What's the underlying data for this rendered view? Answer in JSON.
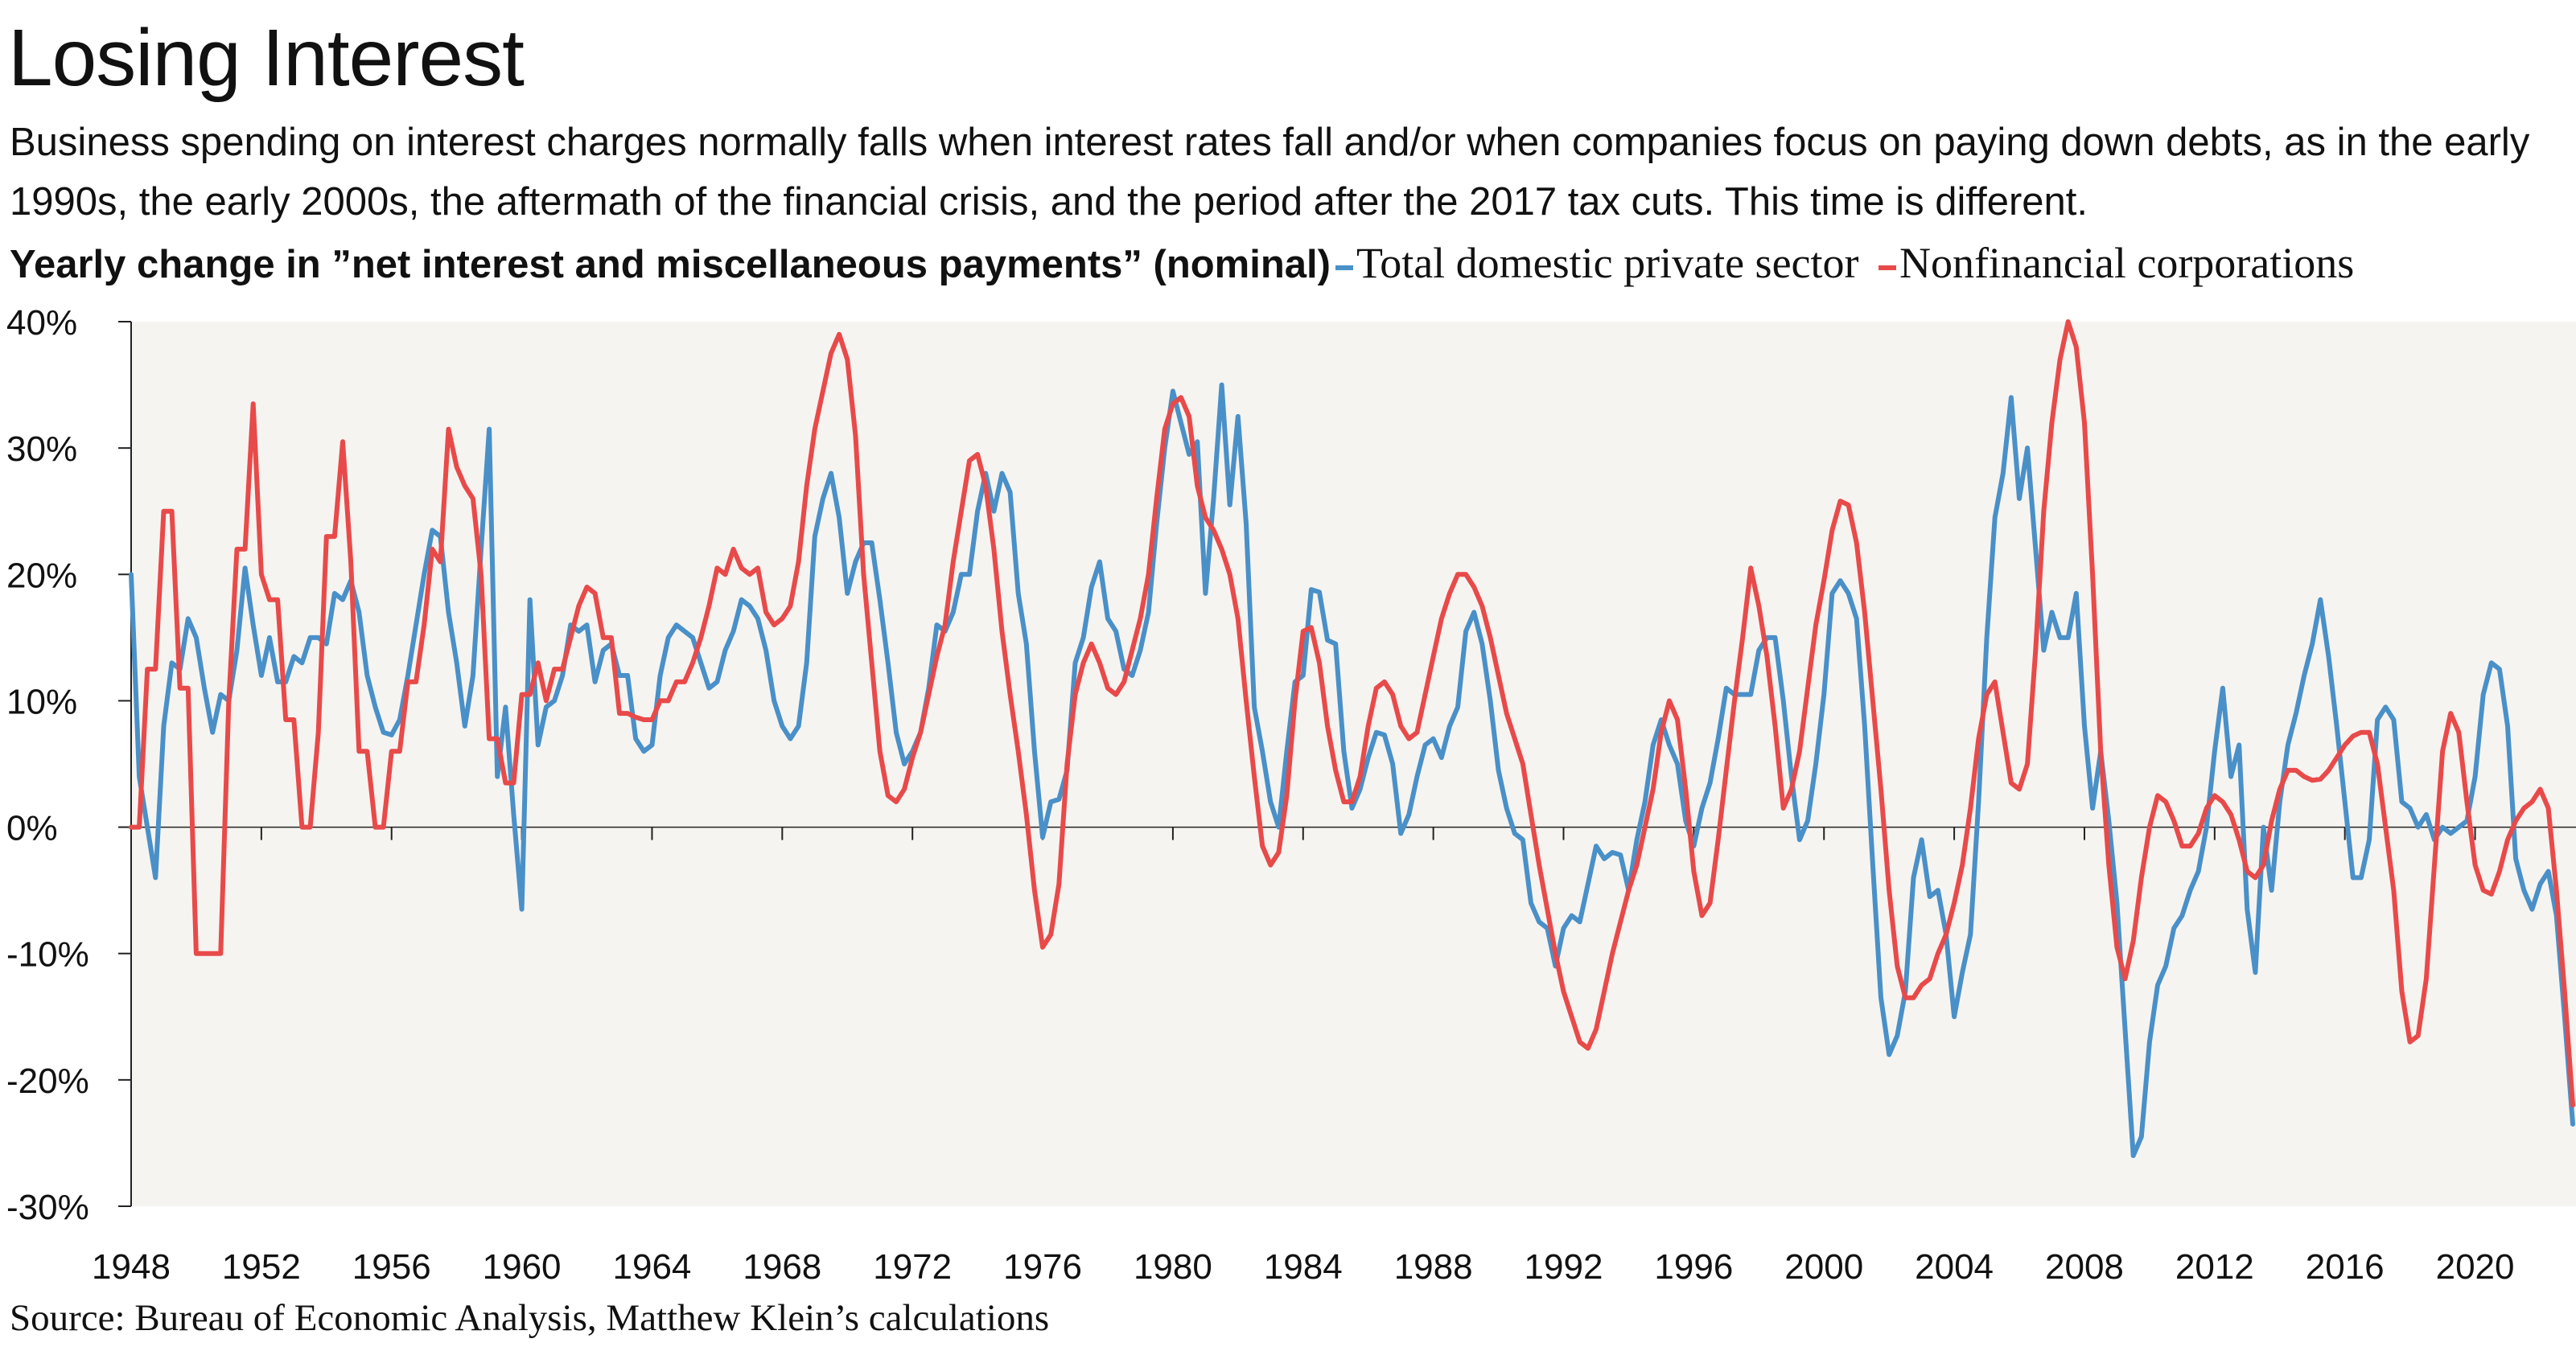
{
  "title": "Losing Interest",
  "subtitle": "Business spending on interest charges normally falls when interest rates fall and/or when companies focus on paying down debts, as in the early 1990s, the early 2000s, the aftermath of the financial crisis, and the period after the 2017 tax cuts. This time is different.",
  "source": "Source: Bureau of Economic Analysis, Matthew Klein’s calculations",
  "colors": {
    "background_plot": "#f6f4f1",
    "total": "#4a90c8",
    "nonfinancial": "#e84a4a"
  },
  "chart_data": {
    "type": "line",
    "title": "Yearly change in ”net interest and miscellaneous payments” (nominal)",
    "xlabel": "",
    "ylabel": "",
    "frequency": "quarterly",
    "xlim": [
      1948,
      2023.1
    ],
    "ylim": [
      -30,
      40
    ],
    "x_ticks": [
      "1948",
      "1952",
      "1956",
      "1960",
      "1964",
      "1968",
      "1972",
      "1976",
      "1980",
      "1984",
      "1988",
      "1992",
      "1996",
      "2000",
      "2004",
      "2008",
      "2012",
      "2016",
      "2020"
    ],
    "y_ticks": [
      "40%",
      "30%",
      "20%",
      "10%",
      "0%",
      "-10%",
      "-20%",
      "-30%"
    ],
    "y_tick_values": [
      40,
      30,
      20,
      10,
      0,
      -10,
      -20,
      -30
    ],
    "grid": false,
    "legend": "top",
    "series": [
      {
        "name": "Total domestic private sector",
        "color": "#4a90c8",
        "quarterly_values": {
          "1948": [
            20,
            4,
            0,
            -4
          ],
          "1949": [
            8,
            13,
            12.5,
            16.5
          ],
          "1950": [
            15,
            11,
            7.5,
            10.5
          ],
          "1951": [
            10,
            14,
            20.5,
            16
          ],
          "1952": [
            12,
            15,
            11.5,
            11.5
          ],
          "1953": [
            13.5,
            13,
            15,
            15
          ],
          "1954": [
            14.5,
            18.5,
            18,
            19.5
          ],
          "1955": [
            17,
            12,
            9.5,
            7.5
          ],
          "1956": [
            7.3,
            8.5,
            12,
            16
          ],
          "1957": [
            20,
            23.5,
            23,
            17
          ],
          "1958": [
            13,
            8,
            12,
            22
          ],
          "1959": [
            31.5,
            4,
            9.5,
            1
          ],
          "1960": [
            -6.5,
            18,
            6.5,
            9.5
          ],
          "1961": [
            10,
            12,
            16,
            15.5
          ],
          "1962": [
            16,
            11.5,
            14,
            14.5
          ],
          "1963": [
            12,
            12,
            7,
            6
          ],
          "1964": [
            6.5,
            12,
            15,
            16
          ],
          "1965": [
            15.5,
            15,
            13,
            11
          ],
          "1966": [
            11.5,
            14,
            15.5,
            18
          ],
          "1967": [
            17.5,
            16.5,
            14,
            10
          ],
          "1968": [
            8,
            7,
            8,
            13
          ],
          "1969": [
            23,
            26,
            28,
            24.5
          ],
          "1970": [
            18.5,
            21,
            22.5,
            22.5
          ],
          "1971": [
            18,
            13,
            7.5,
            5
          ],
          "1972": [
            6,
            7.5,
            11,
            16
          ],
          "1973": [
            15.5,
            17,
            20,
            20
          ],
          "1974": [
            25,
            28,
            25,
            28
          ],
          "1975": [
            26.5,
            18.5,
            14.5,
            6
          ],
          "1976": [
            -0.8,
            2,
            2.2,
            4.5
          ],
          "1977": [
            13,
            15,
            19,
            21
          ],
          "1978": [
            16.5,
            15.5,
            12.5,
            12
          ],
          "1979": [
            14,
            17,
            24,
            30
          ],
          "1980": [
            34.5,
            32,
            29.5,
            30.5
          ],
          "1981": [
            18.5,
            26,
            35,
            25.5
          ],
          "1982": [
            32.5,
            24,
            9.5,
            6
          ],
          "1983": [
            2,
            0,
            6,
            11.5
          ],
          "1984": [
            12,
            18.8,
            18.6,
            14.8
          ],
          "1985": [
            14.5,
            6,
            1.5,
            3
          ],
          "1986": [
            5.5,
            7.5,
            7.3,
            5
          ],
          "1987": [
            -0.5,
            1,
            4,
            6.5
          ],
          "1988": [
            7,
            5.5,
            8,
            9.5
          ],
          "1989": [
            15.5,
            17,
            14.5,
            10
          ],
          "1990": [
            4.5,
            1.5,
            -0.5,
            -1
          ],
          "1991": [
            -6,
            -7.5,
            -8,
            -11
          ],
          "1992": [
            -8,
            -7,
            -7.5,
            -4.5
          ],
          "1993": [
            -1.5,
            -2.5,
            -2,
            -2.2
          ],
          "1994": [
            -5,
            -1,
            2,
            6.5
          ],
          "1995": [
            8.5,
            6.5,
            5,
            0.5
          ],
          "1996": [
            -1.5,
            1.5,
            3.5,
            7
          ],
          "1997": [
            11,
            10.5,
            10.5,
            10.5
          ],
          "1998": [
            14,
            15,
            15,
            10
          ],
          "1999": [
            4,
            -1,
            0.5,
            5
          ],
          "2000": [
            10.5,
            18.5,
            19.5,
            18.5
          ],
          "2001": [
            16.5,
            8,
            -3,
            -13.5
          ],
          "2002": [
            -18,
            -16.5,
            -13,
            -4
          ],
          "2003": [
            -1,
            -5.5,
            -5,
            -8.5
          ],
          "2004": [
            -15,
            -11.5,
            -8.5,
            2
          ],
          "2005": [
            15,
            24.5,
            28,
            34
          ],
          "2006": [
            26,
            30,
            22,
            14
          ],
          "2007": [
            17,
            15,
            15,
            18.5
          ],
          "2008": [
            8,
            1.5,
            6,
            0.5
          ],
          "2009": [
            -6,
            -16,
            -26,
            -24.5
          ],
          "2010": [
            -17,
            -12.5,
            -11,
            -8
          ],
          "2011": [
            -7,
            -5,
            -3.5,
            0
          ],
          "2012": [
            6,
            11,
            4,
            6.5
          ],
          "2013": [
            -6.5,
            -11.5,
            0,
            -5
          ],
          "2014": [
            2,
            6.5,
            9,
            12
          ],
          "2015": [
            14.5,
            18,
            13.5,
            8
          ],
          "2016": [
            2,
            -4,
            -4,
            -1
          ],
          "2017": [
            8.5,
            9.5,
            8.5,
            2
          ],
          "2018": [
            1.5,
            0,
            1,
            -1
          ],
          "2019": [
            0,
            -0.5,
            0,
            0.5
          ],
          "2020": [
            4,
            10.5,
            13,
            12.5
          ],
          "2021": [
            8,
            -2.5,
            -5,
            -6.5
          ],
          "2022": [
            -4.5,
            -3.5,
            -7,
            -15
          ],
          "2023": [
            -23.5
          ]
        }
      },
      {
        "name": "Nonfinancial corporations",
        "color": "#e84a4a",
        "quarterly_values": {
          "1948": [
            0,
            0,
            12.5,
            12.5
          ],
          "1949": [
            25,
            25,
            11,
            11
          ],
          "1950": [
            -10,
            -10,
            -10,
            -10
          ],
          "1951": [
            10,
            22,
            22,
            33.5
          ],
          "1952": [
            20,
            18,
            18,
            8.5
          ],
          "1953": [
            8.5,
            0,
            0,
            7.5
          ],
          "1954": [
            23,
            23,
            30.5,
            21
          ],
          "1955": [
            6,
            6,
            0,
            0
          ],
          "1956": [
            6,
            6,
            11.5,
            11.5
          ],
          "1957": [
            16,
            22,
            21,
            31.5
          ],
          "1958": [
            28.5,
            27,
            26,
            20
          ],
          "1959": [
            7,
            7,
            3.5,
            3.5
          ],
          "1960": [
            10.5,
            10.5,
            13,
            10
          ],
          "1961": [
            12.5,
            12.5,
            15,
            17.5
          ],
          "1962": [
            19,
            18.5,
            15,
            15
          ],
          "1963": [
            9,
            9,
            8.7,
            8.5
          ],
          "1964": [
            8.5,
            10,
            10,
            11.5
          ],
          "1965": [
            11.5,
            13,
            15,
            17.5
          ],
          "1966": [
            20.5,
            20,
            22,
            20.5
          ],
          "1967": [
            20,
            20.5,
            17,
            16
          ],
          "1968": [
            16.5,
            17.5,
            21,
            27
          ],
          "1969": [
            31.5,
            34.5,
            37.5,
            39
          ],
          "1970": [
            37,
            31,
            20,
            13
          ],
          "1971": [
            6,
            2.5,
            2,
            3
          ],
          "1972": [
            5.5,
            7.5,
            10.5,
            13.5
          ],
          "1973": [
            16,
            21,
            25,
            29
          ],
          "1974": [
            29.5,
            27,
            22,
            15.5
          ],
          "1975": [
            10.5,
            6,
            1,
            -5
          ],
          "1976": [
            -9.5,
            -8.5,
            -4.5,
            5
          ],
          "1977": [
            10.5,
            13,
            14.5,
            13
          ],
          "1978": [
            11,
            10.5,
            11.5,
            14
          ],
          "1979": [
            16.5,
            20,
            26,
            31.5
          ],
          "1980": [
            33.5,
            34,
            32.5,
            27
          ],
          "1981": [
            24.5,
            23.5,
            22,
            20
          ],
          "1982": [
            16.5,
            10,
            4,
            -1.5
          ],
          "1983": [
            -3,
            -2,
            2.5,
            10
          ],
          "1984": [
            15.5,
            15.8,
            13,
            8
          ],
          "1985": [
            4.5,
            2,
            2,
            4
          ],
          "1986": [
            8,
            11,
            11.5,
            10.5
          ],
          "1987": [
            8,
            7,
            7.5,
            10.5
          ],
          "1988": [
            13.5,
            16.5,
            18.5,
            20
          ],
          "1989": [
            20,
            19,
            17.5,
            15
          ],
          "1990": [
            12,
            9,
            7,
            5
          ],
          "1991": [
            1,
            -3,
            -6.5,
            -10
          ],
          "1992": [
            -13,
            -15,
            -17,
            -17.5
          ],
          "1993": [
            -16,
            -13,
            -10,
            -7.5
          ],
          "1994": [
            -5,
            -3,
            0,
            3
          ],
          "1995": [
            7.5,
            10,
            8.5,
            3
          ],
          "1996": [
            -3.5,
            -7,
            -6,
            -1
          ],
          "1997": [
            4.5,
            10,
            15,
            20.5
          ],
          "1998": [
            17.5,
            13.5,
            8,
            1.5
          ],
          "1999": [
            3,
            6,
            11,
            16
          ],
          "2000": [
            19.5,
            23.5,
            25.8,
            25.5
          ],
          "2001": [
            22.5,
            17,
            10,
            3
          ],
          "2002": [
            -5,
            -11,
            -13.5,
            -13.5
          ],
          "2003": [
            -12.5,
            -12,
            -10,
            -8.5
          ],
          "2004": [
            -6,
            -3,
            1.5,
            7
          ],
          "2005": [
            10.5,
            11.5,
            7.5,
            3.5
          ],
          "2006": [
            3,
            5,
            14,
            25
          ],
          "2007": [
            32,
            37,
            40,
            38
          ],
          "2008": [
            32,
            20,
            6,
            -3
          ],
          "2009": [
            -9.5,
            -12,
            -9,
            -4
          ],
          "2010": [
            0,
            2.5,
            2,
            0.5
          ],
          "2011": [
            -1.5,
            -1.5,
            -0.5,
            1.5
          ],
          "2012": [
            2.5,
            2,
            1,
            -1
          ],
          "2013": [
            -3.5,
            -4,
            -3,
            0.5
          ],
          "2014": [
            3,
            4.5,
            4.5,
            4
          ],
          "2015": [
            3.7,
            3.8,
            4.5,
            5.5
          ],
          "2016": [
            6.5,
            7.2,
            7.5,
            7.5
          ],
          "2017": [
            5,
            0,
            -5,
            -13
          ],
          "2018": [
            -17,
            -16.5,
            -12,
            -3
          ],
          "2019": [
            6,
            9,
            7.5,
            2
          ],
          "2020": [
            -3,
            -5,
            -5.3,
            -3.5
          ],
          "2021": [
            -1,
            0.5,
            1.5,
            2
          ],
          "2022": [
            3,
            1.5,
            -5,
            -13
          ],
          "2023": [
            -22
          ]
        }
      }
    ]
  }
}
